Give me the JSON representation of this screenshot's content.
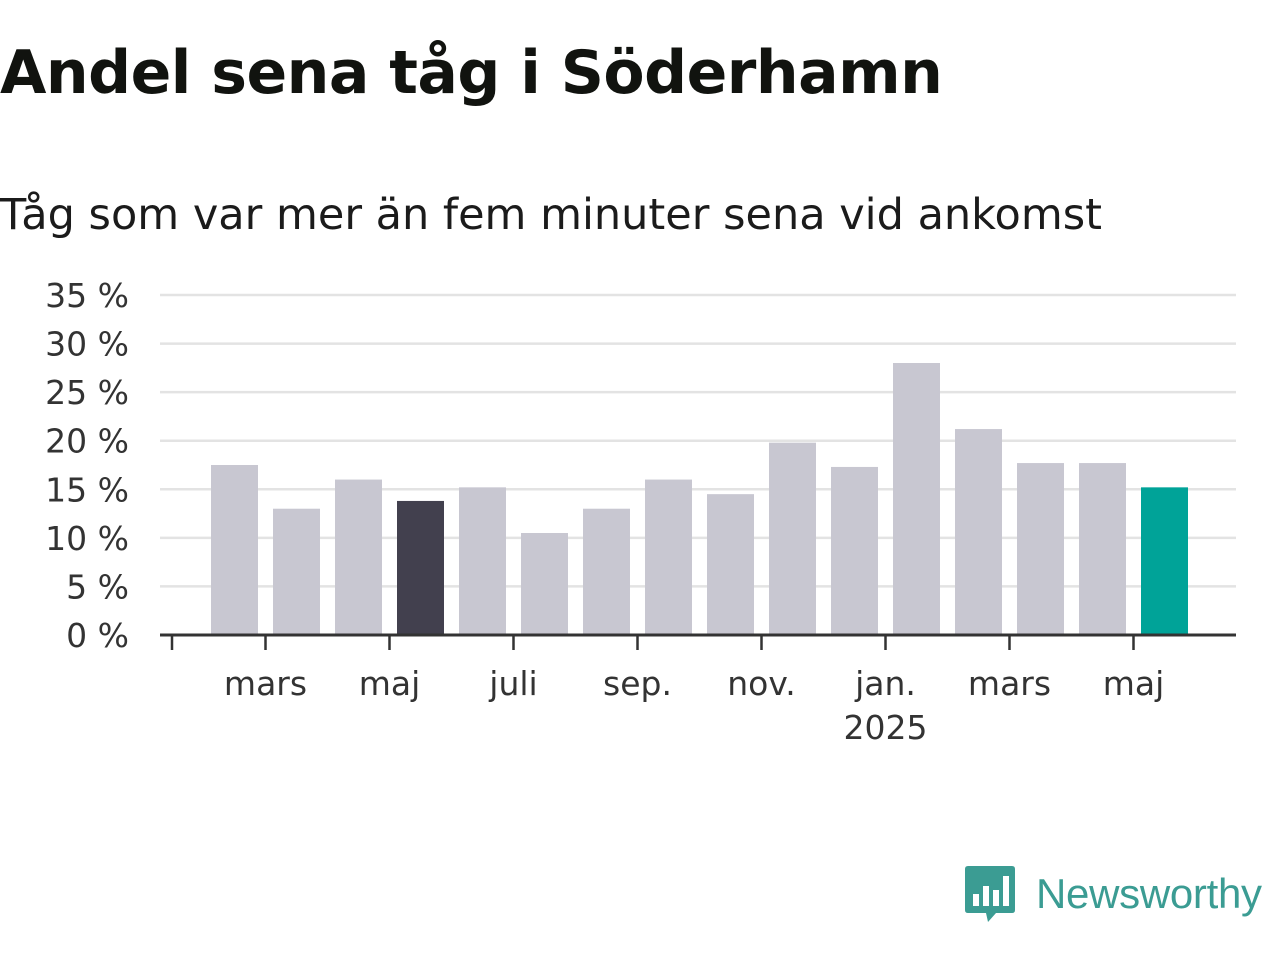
{
  "chart_data": {
    "type": "bar",
    "title": "Andel sena tåg i Söderhamn",
    "subtitle": "Tåg som var mer än fem minuter sena vid ankomst",
    "ylim": [
      0,
      35
    ],
    "y_ticks": [
      "0 %",
      "5 %",
      "10 %",
      "15 %",
      "20 %",
      "25 %",
      "30 %",
      "35 %"
    ],
    "y_tick_values": [
      0,
      5,
      10,
      15,
      20,
      25,
      30,
      35
    ],
    "x_tick_labels": [
      {
        "bar_index": 1,
        "label": "mars"
      },
      {
        "bar_index": 3,
        "label": "maj"
      },
      {
        "bar_index": 5,
        "label": "juli"
      },
      {
        "bar_index": 7,
        "label": "sep."
      },
      {
        "bar_index": 9,
        "label": "nov."
      },
      {
        "bar_index": 11,
        "label": "jan.",
        "sublabel": "2025"
      },
      {
        "bar_index": 13,
        "label": "mars"
      },
      {
        "bar_index": 15,
        "label": "maj"
      }
    ],
    "values": [
      17.5,
      13.0,
      16.0,
      13.8,
      15.2,
      10.5,
      13.0,
      16.0,
      14.5,
      19.8,
      17.3,
      28.0,
      21.2,
      17.7,
      17.7,
      15.2
    ],
    "highlight": {
      "3": "#42404e",
      "15": "#00a398"
    },
    "bar_color": "#c8c7d1",
    "grid": true
  },
  "logo": {
    "text": "Newsworthy",
    "color": "#3b9c93",
    "icon": "newsworthy-chart-badge-icon"
  }
}
